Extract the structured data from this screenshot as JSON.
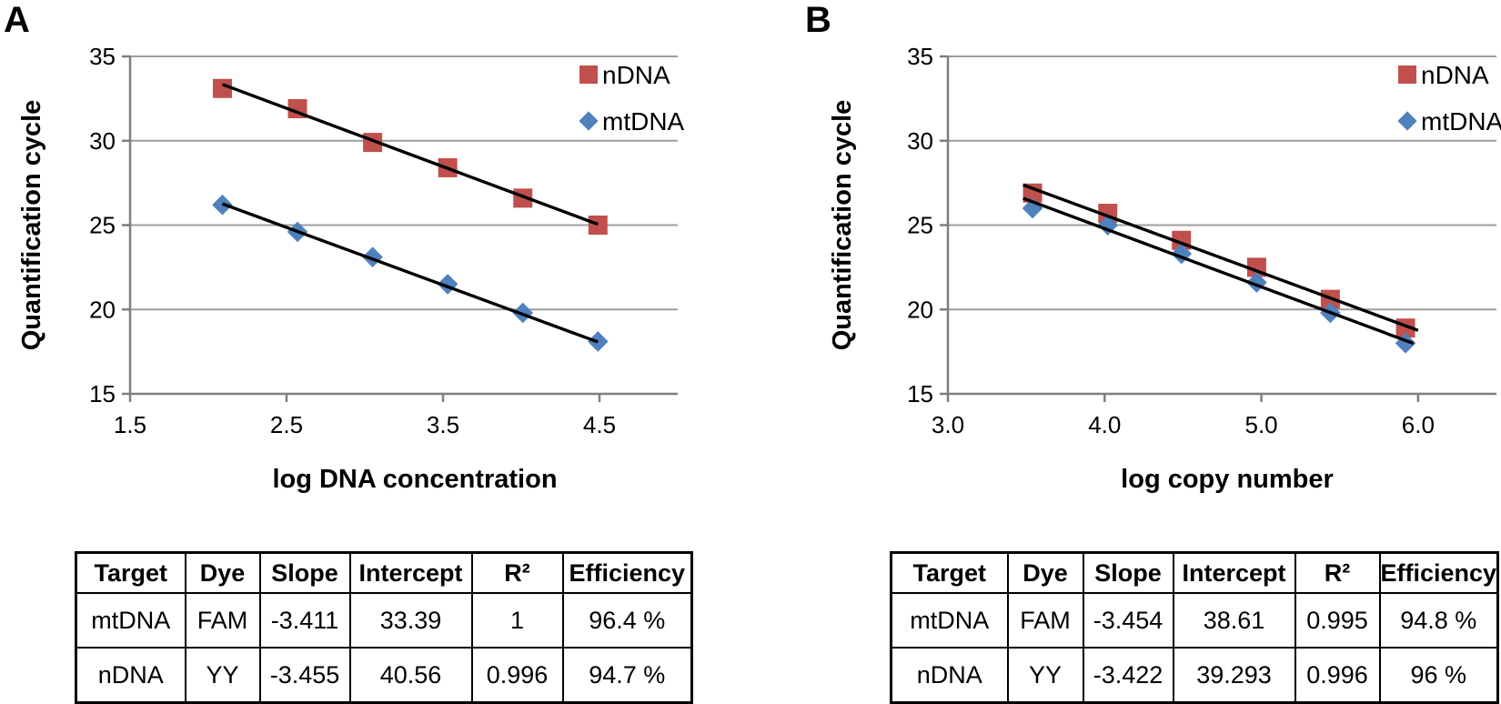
{
  "panels": [
    {
      "label": "A"
    },
    {
      "label": "B"
    }
  ],
  "chart_data": [
    {
      "type": "scatter",
      "panel": "A",
      "title": "",
      "xlabel": "log DNA concentration",
      "ylabel": "Quantification cycle",
      "xlim": [
        1.5,
        5.0
      ],
      "ylim": [
        15,
        35
      ],
      "xticks": [
        "1.5",
        "2.5",
        "3.5",
        "4.5"
      ],
      "yticks": [
        "15",
        "20",
        "25",
        "30",
        "35"
      ],
      "grid": true,
      "legend_position": "upper-right",
      "gridline_color": "#9e9e9e",
      "axis_color": "#7f7f7f",
      "trendline_color": "#000000",
      "series": [
        {
          "name": "nDNA",
          "marker": "square",
          "color": "#C0504D",
          "x": [
            2.09,
            2.57,
            3.05,
            3.53,
            4.01,
            4.49
          ],
          "y": [
            33.1,
            31.9,
            29.9,
            28.4,
            26.6,
            25.0
          ],
          "trend": {
            "slope": -3.455,
            "intercept": 40.56,
            "x1": 2.09,
            "x2": 4.49
          }
        },
        {
          "name": "mtDNA",
          "marker": "diamond",
          "color": "#4F81BD",
          "x": [
            2.09,
            2.57,
            3.05,
            3.53,
            4.01,
            4.49
          ],
          "y": [
            26.2,
            24.6,
            23.1,
            21.5,
            19.8,
            18.1
          ],
          "trend": {
            "slope": -3.411,
            "intercept": 33.39,
            "x1": 2.09,
            "x2": 4.49
          }
        }
      ]
    },
    {
      "type": "scatter",
      "panel": "B",
      "title": "",
      "xlabel": "log copy number",
      "ylabel": "Quantification cycle",
      "xlim": [
        3.0,
        6.5
      ],
      "ylim": [
        15,
        35
      ],
      "xticks": [
        "3.0",
        "4.0",
        "5.0",
        "6.0"
      ],
      "yticks": [
        "15",
        "20",
        "25",
        "30",
        "35"
      ],
      "grid": true,
      "legend_position": "upper-right",
      "gridline_color": "#9e9e9e",
      "axis_color": "#7f7f7f",
      "trendline_color": "#000000",
      "series": [
        {
          "name": "nDNA",
          "marker": "square",
          "color": "#C0504D",
          "x": [
            3.54,
            4.02,
            4.49,
            4.97,
            5.44,
            5.92
          ],
          "y": [
            26.9,
            25.7,
            24.1,
            22.5,
            20.6,
            18.9
          ],
          "trend": {
            "slope": -3.422,
            "intercept": 39.293,
            "x1": 3.48,
            "x2": 6.0
          }
        },
        {
          "name": "mtDNA",
          "marker": "diamond",
          "color": "#4F81BD",
          "x": [
            3.54,
            4.02,
            4.49,
            4.97,
            5.44,
            5.92
          ],
          "y": [
            26.0,
            25.0,
            23.3,
            21.6,
            19.8,
            18.0
          ],
          "trend": {
            "slope": -3.454,
            "intercept": 38.61,
            "x1": 3.48,
            "x2": 5.97
          }
        }
      ]
    }
  ],
  "tables": [
    {
      "headers": [
        "Target",
        "Dye",
        "Slope",
        "Intercept",
        "R²",
        "Efficiency"
      ],
      "rows": [
        [
          "mtDNA",
          "FAM",
          "-3.411",
          "33.39",
          "1",
          "96.4 %"
        ],
        [
          "nDNA",
          "YY",
          "-3.455",
          "40.56",
          "0.996",
          "94.7 %"
        ]
      ]
    },
    {
      "headers": [
        "Target",
        "Dye",
        "Slope",
        "Intercept",
        "R²",
        "Efficiency"
      ],
      "rows": [
        [
          "mtDNA",
          "FAM",
          "-3.454",
          "38.61",
          "0.995",
          "94.8 %"
        ],
        [
          "nDNA",
          "YY",
          "-3.422",
          "39.293",
          "0.996",
          "96 %"
        ]
      ]
    }
  ]
}
